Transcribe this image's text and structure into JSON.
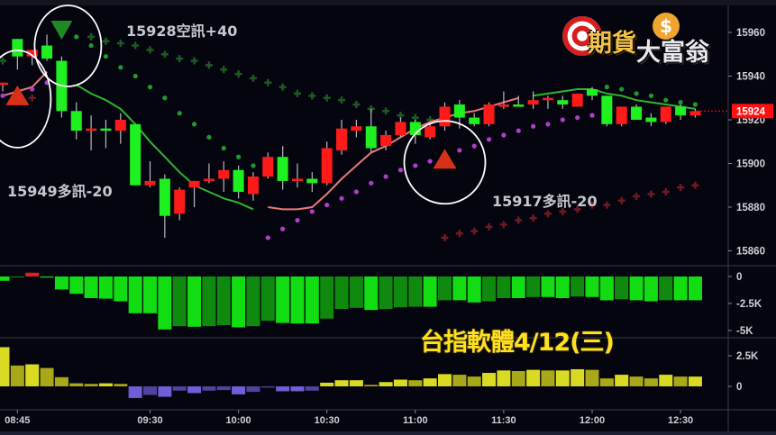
{
  "chart_data": {
    "type": "candlestick",
    "title": "",
    "watermark": "台指軟體4/12(三)",
    "logo": {
      "line1": "期貨",
      "line2": "大富翁",
      "coin_symbol": "$"
    },
    "interval_minutes": 5,
    "first_bar_time": "08:40",
    "x_ticks": [
      "08:45",
      "09:30",
      "10:00",
      "10:30",
      "11:00",
      "11:30",
      "12:00",
      "12:30"
    ],
    "price_axis": {
      "ticks": [
        15960,
        15940,
        15920,
        15900,
        15880,
        15860
      ],
      "ylim": [
        15855,
        15970
      ],
      "last_price": 15924
    },
    "candles": [
      [
        15936,
        15937,
        15933,
        15937
      ],
      [
        15957,
        15957,
        15943,
        15949
      ],
      [
        15949,
        15952,
        15945,
        15952
      ],
      [
        15954,
        15959,
        15947,
        15948
      ],
      [
        15947,
        15949,
        15921,
        15924
      ],
      [
        15924,
        15928,
        15911,
        15915
      ],
      [
        15915,
        15922,
        15906,
        15916
      ],
      [
        15916,
        15920,
        15907,
        15915
      ],
      [
        15915,
        15923,
        15909,
        15920
      ],
      [
        15918,
        15918,
        15890,
        15890
      ],
      [
        15890,
        15901,
        15889,
        15892
      ],
      [
        15893,
        15895,
        15866,
        15876
      ],
      [
        15877,
        15889,
        15874,
        15888
      ],
      [
        15889,
        15892,
        15880,
        15892
      ],
      [
        15892,
        15900,
        15891,
        15893
      ],
      [
        15893,
        15901,
        15887,
        15897
      ],
      [
        15897,
        15899,
        15884,
        15887
      ],
      [
        15886,
        15896,
        15883,
        15894
      ],
      [
        15894,
        15905,
        15893,
        15903
      ],
      [
        15903,
        15908,
        15888,
        15892
      ],
      [
        15892,
        15900,
        15889,
        15893
      ],
      [
        15893,
        15896,
        15887,
        15891
      ],
      [
        15891,
        15910,
        15890,
        15907
      ],
      [
        15906,
        15920,
        15904,
        15916
      ],
      [
        15915,
        15920,
        15912,
        15917
      ],
      [
        15917,
        15925,
        15905,
        15907
      ],
      [
        15908,
        15915,
        15906,
        15913
      ],
      [
        15913,
        15921,
        15912,
        15919
      ],
      [
        15919,
        15920,
        15909,
        15913
      ],
      [
        15912,
        15918,
        15911,
        15917
      ],
      [
        15917,
        15928,
        15915,
        15926
      ],
      [
        15927,
        15929,
        15916,
        15921
      ],
      [
        15921,
        15923,
        15917,
        15918
      ],
      [
        15918,
        15928,
        15917,
        15927
      ],
      [
        15926,
        15933,
        15925,
        15927
      ],
      [
        15927,
        15931,
        15926,
        15926
      ],
      [
        15927,
        15933,
        15925,
        15929
      ],
      [
        15929,
        15931,
        15925,
        15930
      ],
      [
        15929,
        15931,
        15925,
        15927
      ],
      [
        15926,
        15932,
        15926,
        15932
      ],
      [
        15934,
        15935,
        15929,
        15931
      ],
      [
        15931,
        15931,
        15917,
        15918
      ],
      [
        15918,
        15926,
        15917,
        15926
      ],
      [
        15926,
        15927,
        15920,
        15920
      ],
      [
        15921,
        15923,
        15917,
        15919
      ],
      [
        15919,
        15926,
        15918,
        15926
      ],
      [
        15926,
        15928,
        15920,
        15922
      ],
      [
        15922,
        15925,
        15921,
        15924
      ]
    ],
    "candle_format": [
      "open",
      "high",
      "low",
      "close"
    ],
    "colors": {
      "up": "#ff1a1a",
      "down": "#1ff01f",
      "wick": "#b8b8c0",
      "ma_up": "#e87a7a",
      "ma_down": "#2fb52f",
      "sar_up": "#b03ec8",
      "sar_down": "#1f9a30",
      "cross_up": "#6e1a24",
      "cross_down": "#1d5a22",
      "hist_neg": "#12dd12",
      "hist_neg_dark": "#0f8a0f",
      "hist_pos": "#e02020",
      "vol_pos": "#dada22",
      "vol_pos_dark": "#a8a818",
      "vol_neg": "#6e5ed8",
      "vol_neg_dark": "#4e44a0",
      "signal_long": "#d83018",
      "signal_short": "#1f8a25",
      "last_price_badge": "#ff1010",
      "watermark": "#ffe020"
    },
    "moving_average_segments": [
      {
        "trend": "up",
        "start_bar": 1,
        "values": [
          15931,
          15933,
          15935,
          15942
        ]
      },
      {
        "trend": "down",
        "start_bar": 6,
        "values": [
          15936,
          15932,
          15929,
          15925,
          15918,
          15910,
          15903,
          15896,
          15890,
          15887,
          15884,
          15882,
          15879
        ]
      },
      {
        "trend": "up",
        "start_bar": 19,
        "values": [
          15880,
          15879,
          15879,
          15880,
          15886,
          15893,
          15899,
          15905,
          15908,
          15912,
          15916,
          15919,
          15921,
          15923,
          15924,
          15926,
          15928,
          15930
        ]
      },
      {
        "trend": "down",
        "start_bar": 37,
        "values": [
          15931,
          15932,
          15933,
          15934,
          15934,
          15932,
          15931,
          15929,
          15928,
          15927,
          15926,
          15925
        ]
      }
    ],
    "sar_dots": [
      {
        "trend": "up",
        "start_bar": 1,
        "values": [
          15931,
          15932,
          15934,
          15937
        ]
      },
      {
        "trend": "down",
        "start_bar": 5,
        "values": [
          15960,
          15958,
          15954,
          15949,
          15944,
          15940,
          15935,
          15930,
          15923,
          15918,
          15912,
          15907,
          15903,
          15899
        ]
      },
      {
        "trend": "up",
        "start_bar": 19,
        "values": [
          15866,
          15870,
          15874,
          15878,
          15881,
          15884,
          15887,
          15891,
          15894,
          15897,
          15899,
          15901,
          15903,
          15906,
          15908,
          15911,
          15913,
          15915,
          15917,
          15918,
          15920,
          15921,
          15922
        ]
      },
      {
        "trend": "down",
        "start_bar": 42,
        "values": [
          15935,
          15934,
          15932,
          15931,
          15929,
          15928,
          15927
        ]
      }
    ],
    "cross_markers": [
      {
        "trend": "down",
        "start_bar": 1,
        "values": [
          15947
        ]
      },
      {
        "trend": "up",
        "start_bar": 3,
        "values": [
          15930
        ]
      },
      {
        "trend": "down",
        "start_bar": 7,
        "values": [
          15958,
          15956,
          15955,
          15954,
          15952,
          15950,
          15948,
          15947,
          15945,
          15943,
          15941,
          15939,
          15937,
          15935,
          15932,
          15931,
          15930,
          15929,
          15927,
          15925,
          15924,
          15922,
          15921,
          15920
        ]
      },
      {
        "trend": "up",
        "start_bar": 31,
        "values": [
          15866,
          15868,
          15869,
          15871,
          15872,
          15874,
          15875,
          15877,
          15878,
          15879,
          15881,
          15881,
          15883,
          15885,
          15886,
          15887,
          15889,
          15890
        ]
      }
    ],
    "signals": [
      {
        "bar": 2,
        "type": "long",
        "price": 15932,
        "label": "15949多訊-20"
      },
      {
        "bar": 5,
        "type": "short",
        "price": 15960,
        "label": "15928空訊+40"
      },
      {
        "bar": 31,
        "type": "long",
        "price": 15903,
        "label": "15917多訊-20"
      }
    ],
    "histogram_1": {
      "ticks": [
        "0",
        "-2.5K",
        "-5K"
      ],
      "tick_values": [
        0,
        -2.5,
        -5
      ],
      "unit": "K",
      "values": [
        -0.4,
        -0.05,
        0.35,
        -0.1,
        -1.2,
        -1.6,
        -2.0,
        -2.05,
        -2.3,
        -3.4,
        -3.4,
        -4.9,
        -4.6,
        -4.65,
        -4.6,
        -4.5,
        -4.7,
        -4.6,
        -4.1,
        -4.3,
        -4.35,
        -4.35,
        -3.9,
        -3.0,
        -2.9,
        -3.1,
        -3.0,
        -2.85,
        -2.8,
        -2.8,
        -2.2,
        -2.2,
        -2.4,
        -2.3,
        -2.0,
        -2.0,
        -1.9,
        -1.9,
        -2.0,
        -1.85,
        -1.9,
        -2.2,
        -2.1,
        -2.2,
        -2.3,
        -2.2,
        -2.2,
        -2.2
      ]
    },
    "histogram_2": {
      "ticks": [
        "2.5K",
        "0"
      ],
      "tick_values": [
        2.5,
        0
      ],
      "unit": "K",
      "values": [
        3.2,
        1.7,
        1.8,
        1.5,
        0.75,
        0.25,
        0.2,
        0.25,
        0.2,
        -0.95,
        -0.7,
        -0.85,
        -0.35,
        -0.55,
        -0.35,
        -0.3,
        -0.65,
        -0.45,
        -0.1,
        -0.4,
        -0.4,
        -0.35,
        0.3,
        0.5,
        0.5,
        0.12,
        0.35,
        0.55,
        0.5,
        0.65,
        1.0,
        0.95,
        0.8,
        1.1,
        1.3,
        1.25,
        1.35,
        1.3,
        1.3,
        1.4,
        1.35,
        0.65,
        0.95,
        0.8,
        0.65,
        0.95,
        0.8,
        0.8
      ]
    }
  }
}
